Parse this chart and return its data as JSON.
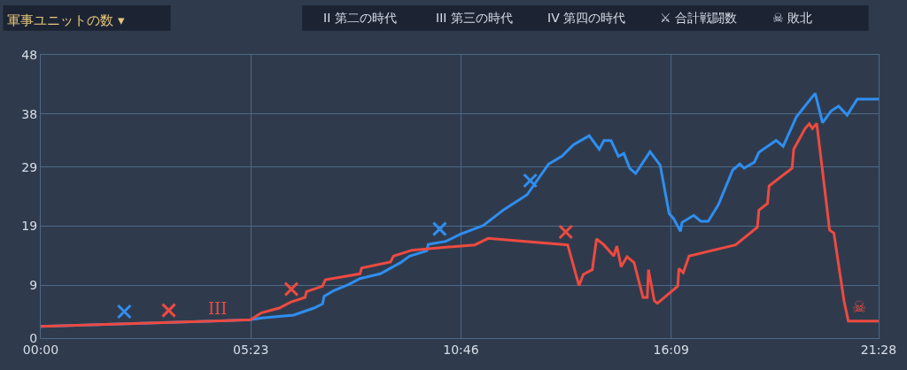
{
  "chart_data": {
    "type": "line",
    "title": "軍事ユニットの数 ▾",
    "xlim": [
      0,
      21.467
    ],
    "xticks": [
      {
        "value": 0,
        "label": "00:00"
      },
      {
        "value": 5.383,
        "label": "05:23"
      },
      {
        "value": 10.767,
        "label": "10:46"
      },
      {
        "value": 16.15,
        "label": "16:09"
      },
      {
        "value": 21.467,
        "label": "21:28"
      }
    ],
    "ylim": [
      0,
      48
    ],
    "yticks": [
      0,
      9,
      19,
      29,
      38,
      48
    ],
    "grid": true,
    "line_style": "solid",
    "marker": "none",
    "series": [
      {
        "color": "#2f8ef0",
        "x": [
          0,
          5.37,
          5.66,
          6.48,
          7.0,
          7.22,
          7.26,
          7.52,
          7.89,
          8.18,
          8.7,
          9.22,
          9.45,
          9.89,
          9.93,
          10.38,
          10.75,
          11.34,
          11.87,
          12.46,
          13.01,
          13.35,
          13.65,
          14.05,
          14.31,
          14.43,
          14.61,
          14.8,
          14.94,
          15.09,
          15.24,
          15.61,
          15.87,
          16.1,
          16.21,
          16.39,
          16.43,
          16.73,
          16.91,
          17.1,
          17.36,
          17.73,
          17.91,
          18.02,
          18.28,
          18.4,
          18.84,
          19.02,
          19.36,
          19.84,
          20.03,
          20.25,
          20.44,
          20.66,
          20.92,
          21.467
        ],
        "values": [
          2.0,
          3.1,
          3.4,
          3.9,
          5.1,
          5.8,
          7.1,
          8.1,
          9.1,
          10.1,
          10.9,
          12.8,
          13.9,
          14.8,
          15.9,
          16.4,
          17.6,
          19.1,
          21.8,
          24.3,
          29.5,
          30.8,
          32.8,
          34.3,
          32.0,
          33.5,
          33.5,
          30.8,
          31.3,
          28.8,
          27.9,
          31.6,
          29.3,
          21.1,
          20.3,
          18.1,
          19.6,
          20.8,
          19.8,
          19.8,
          22.6,
          28.5,
          29.5,
          28.8,
          29.8,
          31.5,
          33.5,
          32.5,
          37.5,
          41.5,
          36.5,
          38.5,
          39.3,
          37.8,
          40.5,
          40.5
        ]
      },
      {
        "color": "#ee4a40",
        "x": [
          0,
          5.37,
          5.66,
          6.11,
          6.4,
          6.77,
          6.81,
          7.22,
          7.29,
          8.18,
          8.22,
          8.96,
          9.04,
          9.51,
          10.38,
          11.12,
          11.46,
          13.5,
          13.79,
          13.9,
          14.13,
          14.24,
          14.43,
          14.68,
          14.76,
          14.87,
          15.02,
          15.2,
          15.43,
          15.54,
          15.57,
          15.72,
          15.8,
          16.32,
          16.35,
          16.46,
          16.61,
          17.8,
          18.36,
          18.4,
          18.62,
          18.66,
          19.25,
          19.29,
          19.58,
          19.69,
          19.77,
          19.88,
          20.03,
          20.21,
          20.32,
          20.58,
          20.69,
          21.467
        ],
        "values": [
          2.0,
          3.1,
          4.3,
          5.1,
          6.1,
          6.9,
          7.9,
          8.8,
          9.9,
          10.9,
          11.9,
          12.9,
          13.9,
          14.9,
          15.4,
          15.8,
          16.9,
          15.8,
          8.9,
          10.8,
          11.6,
          16.8,
          15.8,
          13.9,
          15.6,
          12.1,
          13.8,
          12.8,
          6.9,
          6.9,
          11.6,
          6.3,
          5.9,
          8.8,
          11.8,
          11.1,
          13.9,
          15.8,
          18.8,
          21.7,
          22.8,
          25.8,
          28.8,
          32.0,
          35.5,
          36.3,
          35.5,
          36.4,
          28.3,
          18.3,
          17.8,
          6.3,
          2.9,
          2.9
        ]
      },
      {
        "type": "scatter",
        "marker": "cross",
        "color": "#2f8ef0",
        "x": [
          2.14,
          10.22,
          12.54
        ],
        "values": [
          4.5,
          18.5,
          26.7
        ]
      },
      {
        "type": "scatter",
        "marker": "cross",
        "color": "#ee4a40",
        "x": [
          3.28,
          6.42,
          13.45
        ],
        "values": [
          4.7,
          8.3,
          18.0
        ]
      }
    ],
    "annotations": [
      "II 第二の時代",
      "III 第三の時代",
      "IV 第四の時代",
      "⚔ 合計戦闘数",
      "☠ 敗北",
      {
        "text": "III",
        "x": 4.2,
        "y": 2.6
      },
      {
        "text": "☠",
        "x": 20.69,
        "y": 2.9
      }
    ]
  }
}
